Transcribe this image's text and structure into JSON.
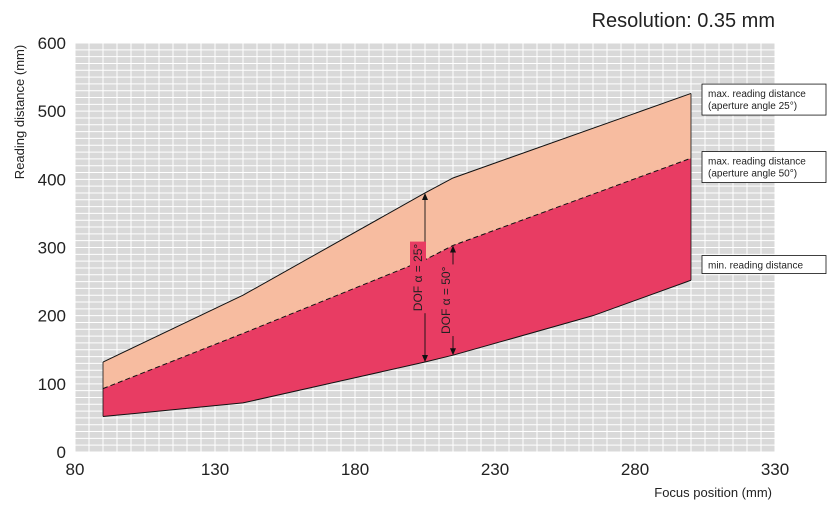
{
  "colors": {
    "plot_bg": "#d9d9d9",
    "grid": "#ffffff",
    "band_25": "#f7bca0",
    "band_50": "#e83c63",
    "line": "#111111"
  },
  "chart_data": {
    "type": "area",
    "title": "Resolution: 0.35 mm",
    "xlabel": "Focus position (mm)",
    "ylabel": "Reading distance (mm)",
    "xlim": [
      80,
      330
    ],
    "ylim": [
      0,
      600
    ],
    "x_ticks": [
      80,
      130,
      180,
      230,
      280,
      330
    ],
    "y_ticks": [
      0,
      100,
      200,
      300,
      400,
      500,
      600
    ],
    "grid": true,
    "series": [
      {
        "name": "max. reading distance (aperture angle 25°)",
        "label_lines": [
          "max. reading distance",
          "(aperture angle 25°)"
        ],
        "style": "solid",
        "points": [
          [
            90,
            132
          ],
          [
            140,
            230
          ],
          [
            205,
            380
          ],
          [
            215,
            402
          ],
          [
            300,
            526
          ]
        ]
      },
      {
        "name": "max. reading distance (aperture angle 50°)",
        "label_lines": [
          "max. reading distance",
          "(aperture angle 50°)"
        ],
        "style": "dashed",
        "points": [
          [
            90,
            93
          ],
          [
            140,
            174
          ],
          [
            205,
            282
          ],
          [
            215,
            303
          ],
          [
            300,
            431
          ]
        ]
      },
      {
        "name": "min. reading distance",
        "label_lines": [
          "min. reading distance"
        ],
        "style": "solid",
        "points": [
          [
            90,
            52
          ],
          [
            140,
            72
          ],
          [
            205,
            132
          ],
          [
            215,
            142
          ],
          [
            265,
            200
          ],
          [
            300,
            252
          ]
        ]
      }
    ],
    "annotations": [
      {
        "text": "DOF α = 25°",
        "x": 205,
        "y_from": 132,
        "y_to": 380
      },
      {
        "text": "DOF α = 50°",
        "x": 215,
        "y_from": 142,
        "y_to": 303
      }
    ]
  }
}
